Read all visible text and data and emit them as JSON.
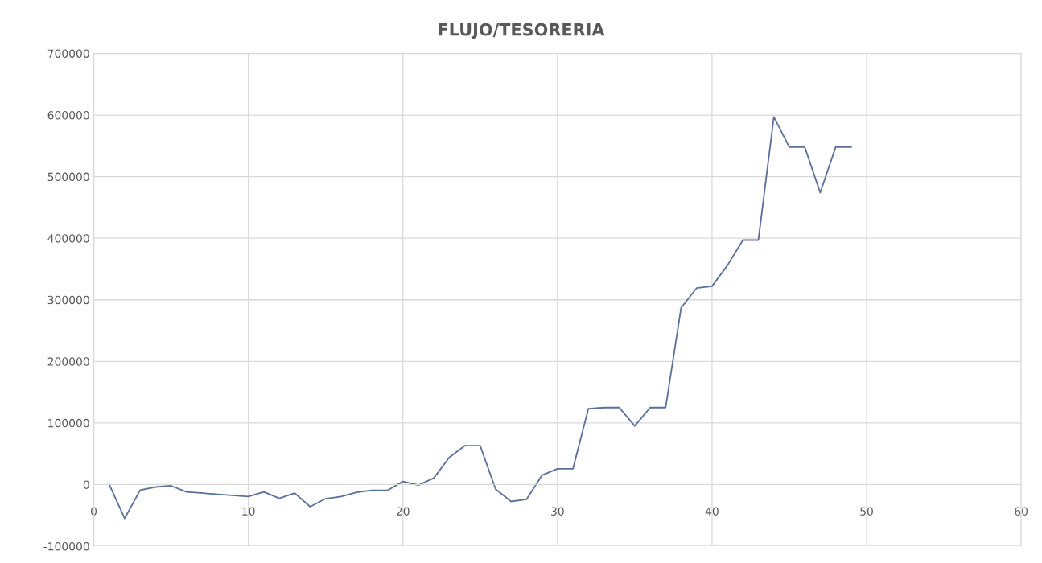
{
  "chart_data": {
    "type": "line",
    "title": "FLUJO/TESORERIA",
    "x": [
      1,
      2,
      3,
      4,
      5,
      6,
      10,
      11,
      12,
      13,
      14,
      15,
      16,
      17,
      18,
      19,
      20,
      21,
      22,
      23,
      24,
      25,
      26,
      27,
      28,
      29,
      30,
      31,
      32,
      33,
      34,
      35,
      36,
      37,
      38,
      39,
      40,
      41,
      42,
      43,
      44,
      45,
      46,
      47,
      48,
      49
    ],
    "series": [
      {
        "color": "#5a6f99",
        "values": [
          0,
          -55000,
          -9000,
          -4000,
          -2000,
          -12000,
          -19500,
          -12000,
          -22500,
          -14000,
          -36000,
          -23000,
          -19500,
          -12500,
          -9500,
          -9500,
          5000,
          -1000,
          10500,
          44000,
          63000,
          63000,
          -7500,
          -27500,
          -24000,
          15000,
          25500,
          25500,
          123000,
          125000,
          125000,
          95000,
          125000,
          125000,
          287000,
          319000,
          322000,
          356000,
          397000,
          397000,
          597000,
          548000,
          548000,
          474000,
          548000,
          548000
        ]
      }
    ],
    "xlim": [
      0,
      60
    ],
    "xticks": [
      0,
      10,
      20,
      30,
      40,
      50,
      60
    ],
    "ylim": [
      -100000,
      700000
    ],
    "yticks": [
      -100000,
      0,
      100000,
      200000,
      300000,
      400000,
      500000,
      600000,
      700000
    ],
    "grid": true,
    "marker": "none",
    "line_style": "solid"
  }
}
